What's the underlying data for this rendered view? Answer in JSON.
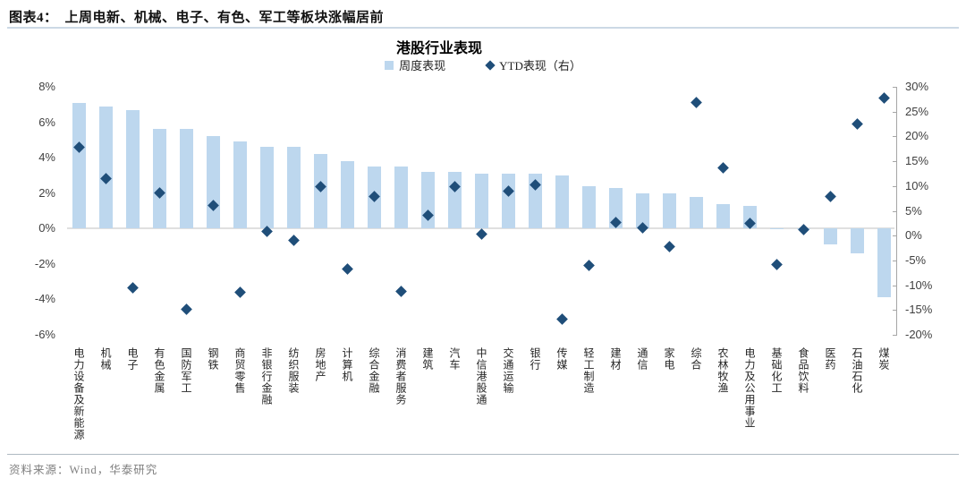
{
  "figure": {
    "caption_prefix": "图表4：",
    "caption_text": "上周电新、机械、电子、有色、军工等板块涨幅居前",
    "source": "资料来源：Wind，华泰研究"
  },
  "chart_data": {
    "type": "bar",
    "title": "港股行业表现",
    "legend": [
      {
        "label": "周度表现",
        "marker": "square",
        "color": "#BDD7EE"
      },
      {
        "label": "YTD表现（右）",
        "marker": "diamond",
        "color": "#1F4E79"
      }
    ],
    "legend_position": "top",
    "grid": false,
    "categories": [
      "电力设备及新能源",
      "机械",
      "电子",
      "有色金属",
      "国防军工",
      "钢铁",
      "商贸零售",
      "非银行金融",
      "纺织服装",
      "房地产",
      "计算机",
      "综合金融",
      "消费者服务",
      "建筑",
      "汽车",
      "中信港股通",
      "交通运输",
      "银行",
      "传媒",
      "轻工制造",
      "建材",
      "通信",
      "家电",
      "综合",
      "农林牧渔",
      "电力及公用事业",
      "基础化工",
      "食品饮料",
      "医药",
      "石油石化",
      "煤炭"
    ],
    "series": [
      {
        "name": "周度表现",
        "type": "bar",
        "axis": "left",
        "unit": "%",
        "values": [
          7.1,
          6.9,
          6.7,
          5.6,
          5.6,
          5.2,
          4.9,
          4.6,
          4.6,
          4.2,
          3.8,
          3.5,
          3.5,
          3.2,
          3.2,
          3.1,
          3.1,
          3.1,
          3.0,
          2.4,
          2.3,
          2.0,
          2.0,
          1.8,
          1.4,
          1.3,
          0.0,
          0.0,
          -0.9,
          -1.4,
          -3.9
        ]
      },
      {
        "name": "YTD表现（右）",
        "type": "scatter",
        "axis": "right",
        "unit": "%",
        "values": [
          17.8,
          11.5,
          -10.6,
          8.6,
          -14.8,
          6.0,
          -11.5,
          0.8,
          -1.0,
          9.9,
          -6.8,
          7.8,
          -11.2,
          4.1,
          9.8,
          0.3,
          8.9,
          10.2,
          -16.9,
          -6.0,
          2.6,
          1.5,
          -2.3,
          26.8,
          13.6,
          2.5,
          -5.9,
          1.2,
          7.8,
          22.5,
          27.8
        ]
      }
    ],
    "axis_left": {
      "min": -6,
      "max": 8,
      "tick_values": [
        8,
        6,
        4,
        2,
        0,
        -2,
        -4,
        -6
      ],
      "tick_labels": [
        "8%",
        "6%",
        "4%",
        "2%",
        "0%",
        "-2%",
        "-4%",
        "-6%"
      ]
    },
    "axis_right": {
      "min": -20,
      "max": 30,
      "tick_values": [
        30,
        25,
        20,
        15,
        10,
        5,
        0,
        -5,
        -10,
        -15,
        -20
      ],
      "tick_labels": [
        "30%",
        "25%",
        "20%",
        "15%",
        "10%",
        "5%",
        "0%",
        "-5%",
        "-10%",
        "-15%",
        "-20%"
      ]
    }
  }
}
